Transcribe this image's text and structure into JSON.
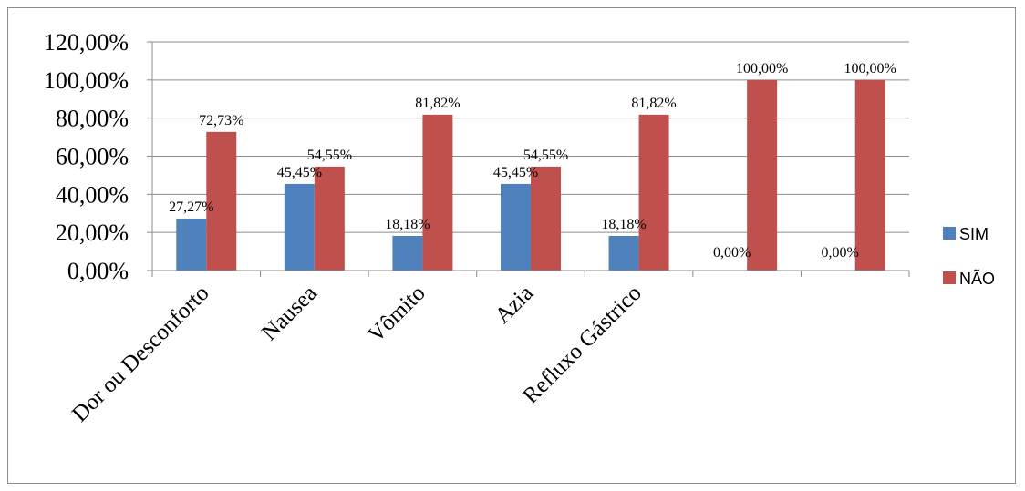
{
  "chart_data": {
    "type": "bar",
    "categories": [
      "Dor ou Desconforto",
      "Nausea",
      "Vômito",
      "Azia",
      "Refluxo Gástrico",
      "",
      ""
    ],
    "series": [
      {
        "name": "SIM",
        "color": "#4f81bd",
        "values": [
          27.27,
          45.45,
          18.18,
          45.45,
          18.18,
          0,
          0
        ],
        "labels": [
          "27,27%",
          "45,45%",
          "18,18%",
          "45,45%",
          "18,18%",
          "0,00%",
          "0,00%"
        ]
      },
      {
        "name": "NÃO",
        "color": "#c0504d",
        "values": [
          72.73,
          54.55,
          81.82,
          54.55,
          81.82,
          100,
          100
        ],
        "labels": [
          "72,73%",
          "54,55%",
          "81,82%",
          "54,55%",
          "81,82%",
          "100,00%",
          "100,00%"
        ]
      }
    ],
    "y_ticks": [
      "0,00%",
      "20,00%",
      "40,00%",
      "60,00%",
      "80,00%",
      "100,00%",
      "120,00%"
    ],
    "ylim": [
      0,
      120
    ],
    "grid": true,
    "legend_position": "right",
    "title": "",
    "xlabel": "",
    "ylabel": ""
  }
}
